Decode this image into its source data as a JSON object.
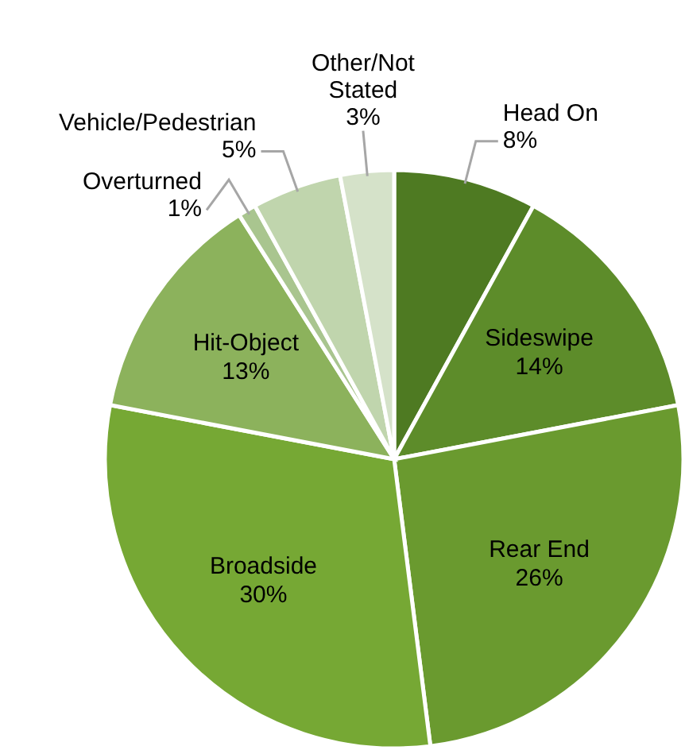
{
  "chart_data": {
    "type": "pie",
    "categories": [
      "Head On",
      "Sideswipe",
      "Rear End",
      "Broadside",
      "Hit-Object",
      "Overturned",
      "Vehicle/Pedestrian",
      "Other/Not Stated"
    ],
    "values": [
      8,
      14,
      26,
      30,
      13,
      1,
      5,
      3
    ],
    "value_labels": [
      "8%",
      "14%",
      "26%",
      "30%",
      "13%",
      "1%",
      "5%",
      "3%"
    ],
    "colors": [
      "#4e7a22",
      "#5d8c2a",
      "#6a9a2f",
      "#76a834",
      "#8cb25c",
      "#a9c58f",
      "#c0d5ad",
      "#d5e2c9"
    ]
  }
}
